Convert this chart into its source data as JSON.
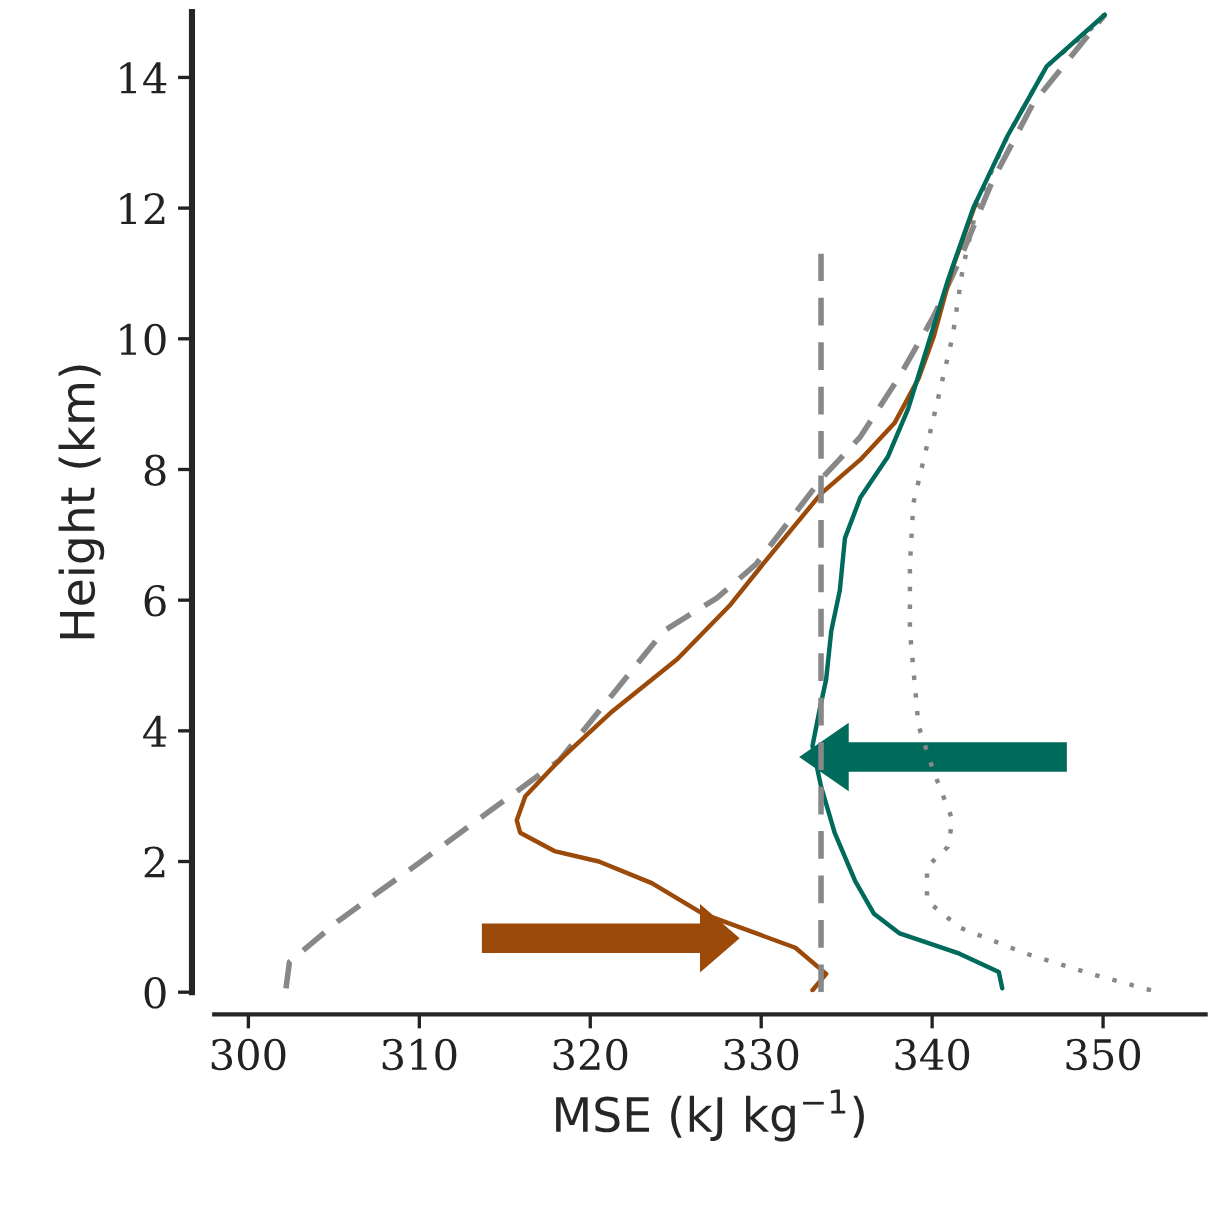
{
  "chart_data": {
    "type": "line",
    "xlabel": "MSE (kJ kg$^{−1}$)",
    "ylabel": "Height (km)",
    "xlim": [
      298,
      356
    ],
    "ylim": [
      0,
      15
    ],
    "xticks": [
      300,
      310,
      320,
      330,
      340,
      350
    ],
    "yticks": [
      0,
      2,
      4,
      6,
      8,
      10,
      12,
      14
    ],
    "grid": false,
    "legend": false,
    "series": [
      {
        "color": "#888888",
        "line_style": "dashed",
        "x": [
          302.2,
          302.4,
          305.2,
          310.1,
          314.0,
          318.2,
          324.3,
          327.4,
          329.7,
          333.5,
          335.8,
          338.1,
          340.1,
          341.6,
          343.5,
          345.9,
          350.1
        ],
        "values": [
          0.06,
          0.46,
          1.08,
          2.0,
          2.75,
          3.55,
          5.53,
          6.03,
          6.55,
          7.85,
          8.5,
          9.43,
          10.35,
          11.2,
          12.4,
          13.6,
          14.96
        ]
      },
      {
        "color": "#888888",
        "line_style": "dotted",
        "x": [
          352.8,
          349.3,
          345.5,
          341.6,
          339.7,
          339.7,
          340.9,
          341.2,
          340.1,
          339.2,
          338.7,
          338.7,
          338.7,
          338.9,
          340.1,
          341.2,
          341.8,
          342.7,
          344.4,
          346.7,
          350.0
        ],
        "values": [
          0.03,
          0.28,
          0.59,
          0.99,
          1.4,
          1.92,
          2.22,
          2.63,
          3.37,
          4.08,
          5.53,
          6.15,
          6.55,
          7.48,
          8.81,
          10.04,
          11.09,
          12.11,
          13.1,
          14.17,
          14.9
        ]
      },
      {
        "color": "#9c4a0a",
        "line_style": "solid",
        "x": [
          333.0,
          333.8,
          332.0,
          329.4,
          326.6,
          323.6,
          320.5,
          317.9,
          315.9,
          315.7,
          316.2,
          318.2,
          321.3,
          325.1,
          328.2,
          330.1,
          333.5,
          335.8,
          337.8,
          339.2,
          340.1,
          341.2,
          342.6
        ],
        "values": [
          0.03,
          0.28,
          0.68,
          0.93,
          1.2,
          1.67,
          2.0,
          2.16,
          2.44,
          2.63,
          3.0,
          3.55,
          4.3,
          5.1,
          5.93,
          6.55,
          7.63,
          8.15,
          8.71,
          9.39,
          10.04,
          11.09,
          12.11
        ]
      },
      {
        "color": "#006a5b",
        "line_style": "solid",
        "x": [
          344.1,
          343.9,
          341.6,
          338.1,
          336.6,
          335.5,
          334.3,
          333.5,
          333.0,
          333.4,
          333.8,
          334.1,
          334.6,
          334.9,
          335.8,
          337.4,
          338.6,
          339.7,
          340.9,
          342.4,
          344.4,
          346.7,
          350.1
        ],
        "values": [
          0.06,
          0.31,
          0.59,
          0.9,
          1.2,
          1.7,
          2.44,
          3.15,
          3.77,
          4.3,
          4.79,
          5.53,
          6.15,
          6.95,
          7.57,
          8.19,
          8.93,
          9.86,
          10.88,
          12.0,
          13.1,
          14.17,
          14.96
        ]
      },
      {
        "color": "#888888",
        "line_style": "dashed",
        "x": [
          333.5,
          333.5
        ],
        "values": [
          0,
          11.3
        ]
      }
    ]
  }
}
